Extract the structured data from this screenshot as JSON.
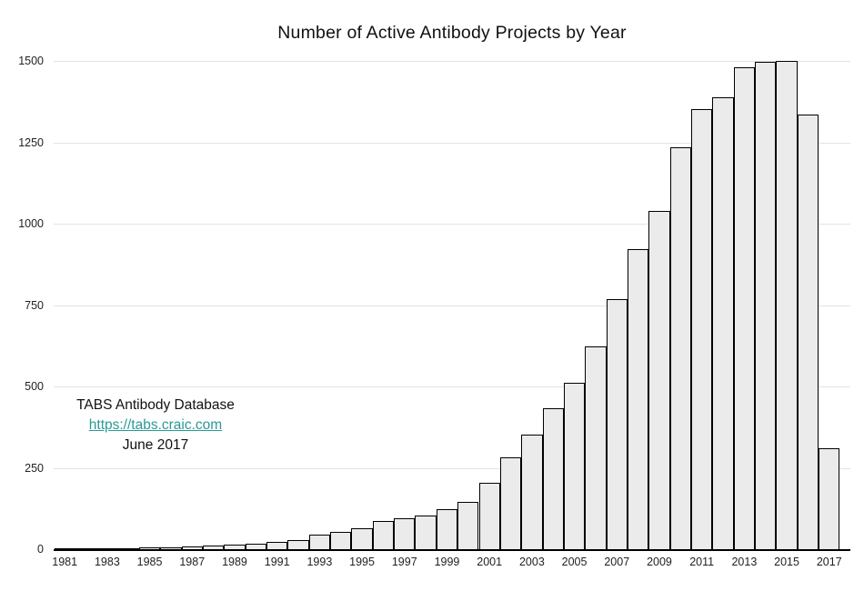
{
  "annotation": {
    "line1": "TABS Antibody Database",
    "link": "https://tabs.craic.com",
    "line3": "June 2017"
  },
  "colors": {
    "bar_fill": "#ebebeb",
    "bar_border": "#000000",
    "grid": "#e3e3e3",
    "axis": "#000000",
    "link": "#2a9a96",
    "text": "#111111"
  },
  "chart_data": {
    "type": "bar",
    "title": "Number of Active Antibody Projects by Year",
    "x": [
      1981,
      1982,
      1983,
      1984,
      1985,
      1986,
      1987,
      1988,
      1989,
      1990,
      1991,
      1992,
      1993,
      1994,
      1995,
      1996,
      1997,
      1998,
      1999,
      2000,
      2001,
      2002,
      2003,
      2004,
      2005,
      2006,
      2007,
      2008,
      2009,
      2010,
      2011,
      2012,
      2013,
      2014,
      2015,
      2016,
      2017
    ],
    "values": [
      1,
      1,
      2,
      3,
      5,
      6,
      8,
      11,
      15,
      16,
      21,
      29,
      45,
      53,
      64,
      87,
      95,
      104,
      123,
      145,
      203,
      282,
      352,
      434,
      510,
      623,
      768,
      921,
      1040,
      1235,
      1352,
      1388,
      1480,
      1497,
      1500,
      1335,
      310
    ],
    "xlabel": "",
    "ylabel": "",
    "ylim": [
      0,
      1500
    ],
    "yticks": [
      0,
      250,
      500,
      750,
      1000,
      1250,
      1500
    ],
    "xtick_labels": [
      "1981",
      "1983",
      "1985",
      "1987",
      "1989",
      "1991",
      "1993",
      "1995",
      "1997",
      "1999",
      "2001",
      "2003",
      "2005",
      "2007",
      "2009",
      "2011",
      "2013",
      "2015",
      "2017"
    ],
    "grid": "horizontal",
    "legend": "none"
  }
}
